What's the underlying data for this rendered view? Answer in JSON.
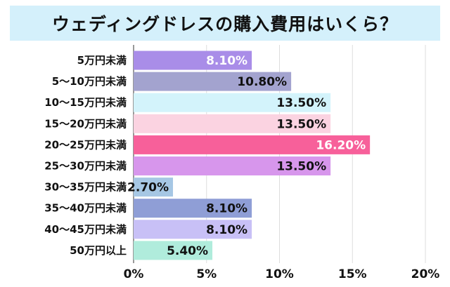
{
  "chart_data": {
    "type": "bar",
    "orientation": "horizontal",
    "title": "ウェディングドレスの購入費用はいくら？",
    "categories": [
      "5万円未満",
      "5～10万円未満",
      "10～15万円未満",
      "15～20万円未満",
      "20～25万円未満",
      "25～30万円未満",
      "30～35万円未満",
      "35～40万円未満",
      "40～45万円未満",
      "50万円以上"
    ],
    "values": [
      8.1,
      10.8,
      13.5,
      13.5,
      16.2,
      13.5,
      2.7,
      8.1,
      8.1,
      5.4
    ],
    "value_labels": [
      "8.10%",
      "10.80%",
      "13.50%",
      "13.50%",
      "16.20%",
      "13.50%",
      "2.70%",
      "8.10%",
      "8.10%",
      "5.40%"
    ],
    "bar_colors": [
      "#a98de8",
      "#a3a3cf",
      "#d3f3fb",
      "#fbd3e1",
      "#f7609a",
      "#d796ec",
      "#a6c7e4",
      "#8f9ed6",
      "#c8c0f6",
      "#b0ecdc"
    ],
    "label_colors": [
      "#ffffff",
      "#111111",
      "#111111",
      "#111111",
      "#ffffff",
      "#111111",
      "#111111",
      "#111111",
      "#111111",
      "#111111"
    ],
    "xlim": [
      0,
      20
    ],
    "xticks": [
      0,
      5,
      10,
      15,
      20
    ],
    "xtick_labels": [
      "0%",
      "5%",
      "10%",
      "15%",
      "20%"
    ],
    "grid": "vertical"
  }
}
